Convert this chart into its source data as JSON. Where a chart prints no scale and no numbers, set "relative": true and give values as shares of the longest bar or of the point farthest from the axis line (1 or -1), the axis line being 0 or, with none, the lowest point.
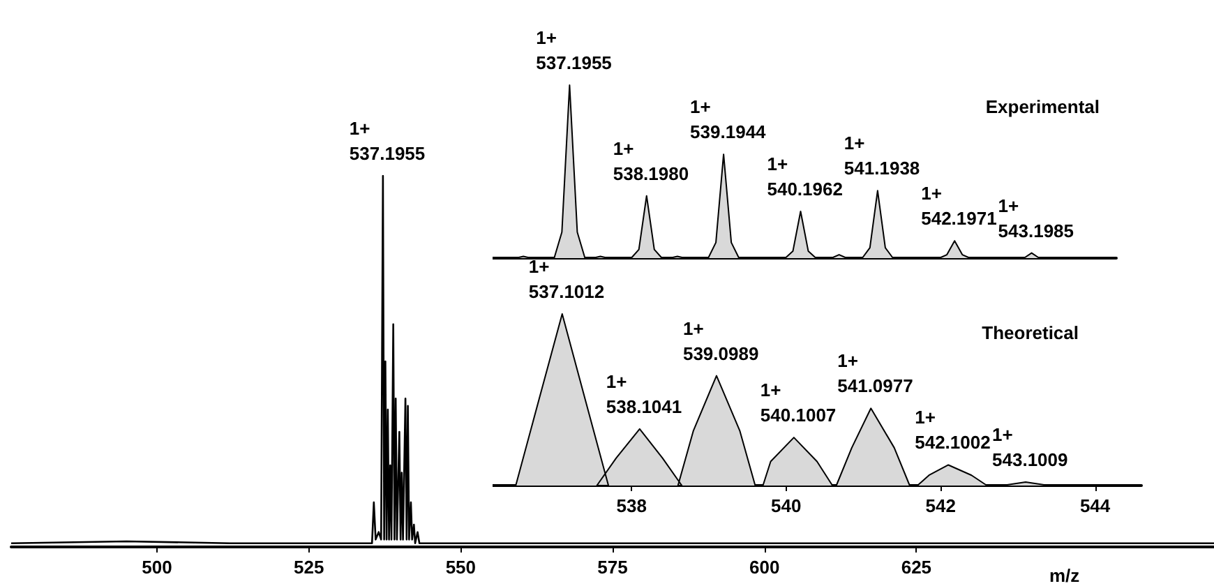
{
  "chart_data": [
    {
      "type": "line",
      "relative": true,
      "xlabel": "m/z",
      "xlim": [
        476,
        674
      ],
      "xticks": [
        500,
        525,
        550,
        575,
        600,
        625
      ],
      "tick_labels": "x",
      "series": [
        {
          "color": "#000000",
          "x": [
            476,
            495,
            512,
            530,
            535.4,
            535.7,
            536.0,
            536.5,
            536.9,
            537.2,
            537.4,
            537.6,
            537.8,
            538.0,
            538.2,
            538.4,
            538.6,
            538.9,
            539.1,
            539.3,
            539.5,
            539.9,
            540.1,
            540.3,
            540.5,
            540.9,
            541.1,
            541.3,
            541.5,
            541.8,
            542.0,
            542.3,
            542.5,
            542.9,
            543.2,
            550,
            575,
            600,
            625,
            650,
            674
          ],
          "values": [
            0.01,
            0.015,
            0.01,
            0.01,
            0.01,
            0.12,
            0.02,
            0.04,
            0.02,
            1.0,
            0.02,
            0.5,
            0.02,
            0.37,
            0.02,
            0.22,
            0.02,
            0.6,
            0.02,
            0.4,
            0.02,
            0.31,
            0.02,
            0.2,
            0.02,
            0.4,
            0.02,
            0.38,
            0.02,
            0.12,
            0.02,
            0.06,
            0.01,
            0.04,
            0.01,
            0.01,
            0.01,
            0.01,
            0.01,
            0.01,
            0.01
          ]
        }
      ],
      "annotations": [
        {
          "text": "1+\n537.1955",
          "x": 537.1955,
          "y": 1.0
        }
      ]
    },
    {
      "type": "area",
      "relative": true,
      "title": "Experimental",
      "tick_labels": false,
      "categories": [
        null,
        null,
        null,
        null,
        null,
        null,
        null,
        null,
        null,
        null,
        null,
        null,
        null,
        null,
        null,
        null,
        null,
        null,
        null,
        null,
        null,
        null,
        null,
        null,
        null,
        null,
        null,
        null,
        null,
        null,
        null,
        null,
        null,
        null,
        null,
        null,
        null,
        null,
        null,
        null,
        null,
        null,
        null,
        null,
        null,
        null,
        null,
        null,
        null,
        null,
        null,
        null,
        null,
        null,
        null,
        null,
        null,
        null,
        null,
        null,
        null,
        null,
        null,
        null,
        null,
        null,
        null,
        null,
        null,
        null,
        null,
        null,
        null,
        null,
        null,
        null,
        null,
        null,
        null,
        null,
        null,
        null
      ],
      "series": [
        {
          "color": "#d9d9d9",
          "values": [
            0,
            0,
            0,
            0,
            0.01,
            0,
            0,
            0,
            0,
            0.15,
            1.0,
            0.15,
            0,
            0,
            0.01,
            0,
            0,
            0,
            0,
            0.05,
            0.36,
            0.05,
            0,
            0,
            0.01,
            0,
            0,
            0,
            0,
            0.09,
            0.6,
            0.09,
            0,
            0,
            0,
            0,
            0,
            0,
            0,
            0.04,
            0.27,
            0.04,
            0,
            0,
            0,
            0.02,
            0,
            0,
            0,
            0.06,
            0.39,
            0.06,
            0,
            0,
            0,
            0,
            0,
            0,
            0,
            0.02,
            0.1,
            0.02,
            0,
            0,
            0,
            0,
            0,
            0,
            0,
            0,
            0.03,
            0,
            0,
            0,
            0,
            0,
            0,
            0,
            0,
            0,
            0,
            0
          ]
        }
      ],
      "annotations": [
        {
          "text": "1+\n537.1955",
          "y": 1.0
        },
        {
          "text": "1+\n538.1980",
          "y": 0.36
        },
        {
          "text": "1+\n539.1944",
          "y": 0.6
        },
        {
          "text": "1+\n540.1962",
          "y": 0.27
        },
        {
          "text": "1+\n541.1938",
          "y": 0.39
        },
        {
          "text": "1+\n542.1971",
          "y": 0.1
        },
        {
          "text": "1+\n543.1985",
          "y": 0.03
        }
      ]
    },
    {
      "type": "area",
      "relative": true,
      "title": "Theoretical",
      "xlim": [
        536.2,
        544.6
      ],
      "xticks": [
        538,
        540,
        542,
        544
      ],
      "tick_labels": "x",
      "series": [
        {
          "color": "#d9d9d9",
          "x": [
            536.2,
            536.5,
            536.8,
            537.1012,
            537.4,
            537.7,
            537.55,
            537.8,
            538.1041,
            538.4,
            538.65,
            538.6,
            538.8,
            539.0989,
            539.4,
            539.6,
            539.7,
            539.8,
            540.1007,
            540.4,
            540.6,
            540.65,
            540.85,
            541.0977,
            541.4,
            541.6,
            541.7,
            541.85,
            542.1002,
            542.4,
            542.6,
            542.8,
            543.1009,
            543.4,
            544.6
          ],
          "values": [
            0,
            0,
            0.5,
            1.0,
            0.5,
            0,
            0,
            0.16,
            0.33,
            0.16,
            0,
            0,
            0.32,
            0.64,
            0.32,
            0,
            0,
            0.14,
            0.28,
            0.14,
            0,
            0,
            0.22,
            0.45,
            0.22,
            0,
            0,
            0.06,
            0.12,
            0.06,
            0,
            0,
            0.02,
            0,
            0
          ]
        }
      ],
      "annotations": [
        {
          "text": "1+\n537.1012",
          "x": 537.1012,
          "y": 1.0
        },
        {
          "text": "1+\n538.1041",
          "x": 538.1041,
          "y": 0.33
        },
        {
          "text": "1+\n539.0989",
          "x": 539.0989,
          "y": 0.64
        },
        {
          "text": "1+\n540.1007",
          "x": 540.1007,
          "y": 0.28
        },
        {
          "text": "1+\n541.0977",
          "x": 541.0977,
          "y": 0.45
        },
        {
          "text": "1+\n542.1002",
          "x": 542.1002,
          "y": 0.12
        },
        {
          "text": "1+\n543.1009",
          "x": 543.1009,
          "y": 0.02
        }
      ]
    }
  ]
}
